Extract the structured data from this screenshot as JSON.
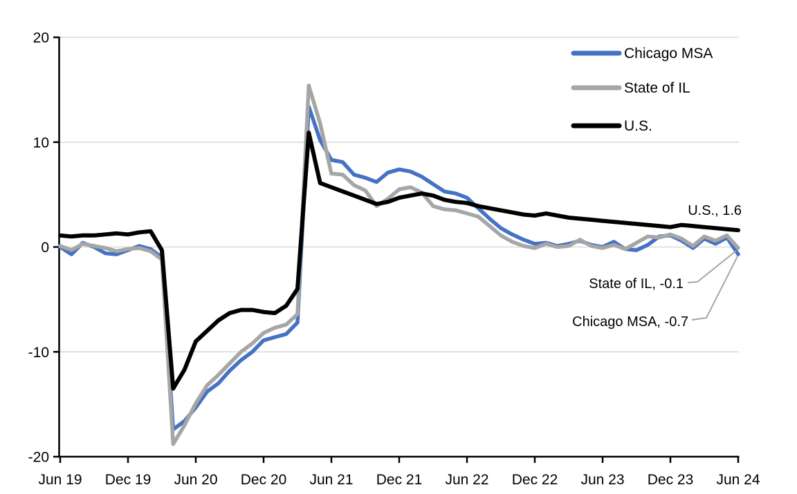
{
  "colors": {
    "background": "#FFFFFF",
    "grid": "#D9D9D9",
    "axis": "#000000",
    "tick_text": "#000000",
    "legend_text": "#000000",
    "annotation_text": "#595959",
    "leader_line": "#A6A6A6",
    "chicago_msa": "#4472C4",
    "state_of_il": "#A6A6A6",
    "us": "#000000"
  },
  "chart_data": {
    "type": "line",
    "title": "",
    "xlabel": "",
    "ylabel": "",
    "ylim": [
      -20,
      20
    ],
    "y_ticks": [
      20,
      10,
      0,
      -10,
      -20
    ],
    "x_tick_labels": [
      "Jun 19",
      "Dec 19",
      "Jun 20",
      "Dec 20",
      "Jun 21",
      "Dec 21",
      "Jun 22",
      "Dec 22",
      "Jun 23",
      "Dec 23",
      "Jun 24"
    ],
    "grid": "horizontal-only",
    "legend_position": "top-right",
    "frequency": "monthly",
    "x": [
      "2019-06",
      "2019-07",
      "2019-08",
      "2019-09",
      "2019-10",
      "2019-11",
      "2019-12",
      "2020-01",
      "2020-02",
      "2020-03",
      "2020-04",
      "2020-05",
      "2020-06",
      "2020-07",
      "2020-08",
      "2020-09",
      "2020-10",
      "2020-11",
      "2020-12",
      "2021-01",
      "2021-02",
      "2021-03",
      "2021-04",
      "2021-05",
      "2021-06",
      "2021-07",
      "2021-08",
      "2021-09",
      "2021-10",
      "2021-11",
      "2021-12",
      "2022-01",
      "2022-02",
      "2022-03",
      "2022-04",
      "2022-05",
      "2022-06",
      "2022-07",
      "2022-08",
      "2022-09",
      "2022-10",
      "2022-11",
      "2022-12",
      "2023-01",
      "2023-02",
      "2023-03",
      "2023-04",
      "2023-05",
      "2023-06",
      "2023-07",
      "2023-08",
      "2023-09",
      "2023-10",
      "2023-11",
      "2023-12",
      "2024-01",
      "2024-02",
      "2024-03",
      "2024-04",
      "2024-05",
      "2024-06"
    ],
    "series": [
      {
        "name": "Chicago MSA",
        "color": "#4472C4",
        "values": [
          0.0,
          -0.7,
          0.4,
          0.0,
          -0.6,
          -0.7,
          -0.3,
          0.1,
          -0.2,
          -1.0,
          -17.4,
          -16.6,
          -15.3,
          -13.8,
          -13.0,
          -11.8,
          -10.8,
          -10.0,
          -8.9,
          -8.6,
          -8.3,
          -7.2,
          13.4,
          10.2,
          8.3,
          8.1,
          6.9,
          6.6,
          6.2,
          7.1,
          7.4,
          7.2,
          6.7,
          6.0,
          5.3,
          5.1,
          4.7,
          3.7,
          2.7,
          1.8,
          1.2,
          0.7,
          0.3,
          0.4,
          0.1,
          0.3,
          0.6,
          0.2,
          0.0,
          0.5,
          -0.2,
          -0.3,
          0.2,
          1.0,
          1.1,
          0.6,
          -0.1,
          0.8,
          0.3,
          0.9,
          -0.7
        ]
      },
      {
        "name": "State of IL",
        "color": "#A6A6A6",
        "values": [
          0.1,
          -0.3,
          0.3,
          0.1,
          -0.1,
          -0.4,
          -0.2,
          -0.1,
          -0.4,
          -1.2,
          -18.8,
          -17.0,
          -14.9,
          -13.2,
          -12.2,
          -11.1,
          -10.0,
          -9.2,
          -8.2,
          -7.7,
          -7.4,
          -6.4,
          15.4,
          11.8,
          7.0,
          6.9,
          5.9,
          5.4,
          3.9,
          4.6,
          5.5,
          5.7,
          5.2,
          3.9,
          3.6,
          3.5,
          3.2,
          2.9,
          2.0,
          1.1,
          0.5,
          0.1,
          -0.1,
          0.3,
          0.0,
          0.1,
          0.7,
          0.1,
          -0.1,
          0.2,
          -0.2,
          0.4,
          1.0,
          0.9,
          1.2,
          0.8,
          0.1,
          1.0,
          0.6,
          1.1,
          -0.1
        ]
      },
      {
        "name": "U.S.",
        "color": "#000000",
        "values": [
          1.1,
          1.0,
          1.1,
          1.1,
          1.2,
          1.3,
          1.2,
          1.4,
          1.5,
          -0.3,
          -13.5,
          -11.7,
          -9.0,
          -8.0,
          -7.0,
          -6.3,
          -6.0,
          -6.0,
          -6.2,
          -6.3,
          -5.6,
          -4.0,
          10.9,
          6.1,
          5.7,
          5.3,
          4.9,
          4.5,
          4.1,
          4.3,
          4.7,
          4.9,
          5.1,
          4.9,
          4.5,
          4.3,
          4.2,
          3.9,
          3.7,
          3.5,
          3.3,
          3.1,
          3.0,
          3.2,
          3.0,
          2.8,
          2.7,
          2.6,
          2.5,
          2.4,
          2.3,
          2.2,
          2.1,
          2.0,
          1.9,
          2.1,
          2.0,
          1.9,
          1.8,
          1.7,
          1.6
        ]
      }
    ],
    "annotations": [
      {
        "text": "U.S., 1.6",
        "series": "U.S.",
        "value": 1.6
      },
      {
        "text": "State of IL, -0.1",
        "series": "State of IL",
        "value": -0.1
      },
      {
        "text": "Chicago MSA, -0.7",
        "series": "Chicago MSA",
        "value": -0.7
      }
    ]
  }
}
